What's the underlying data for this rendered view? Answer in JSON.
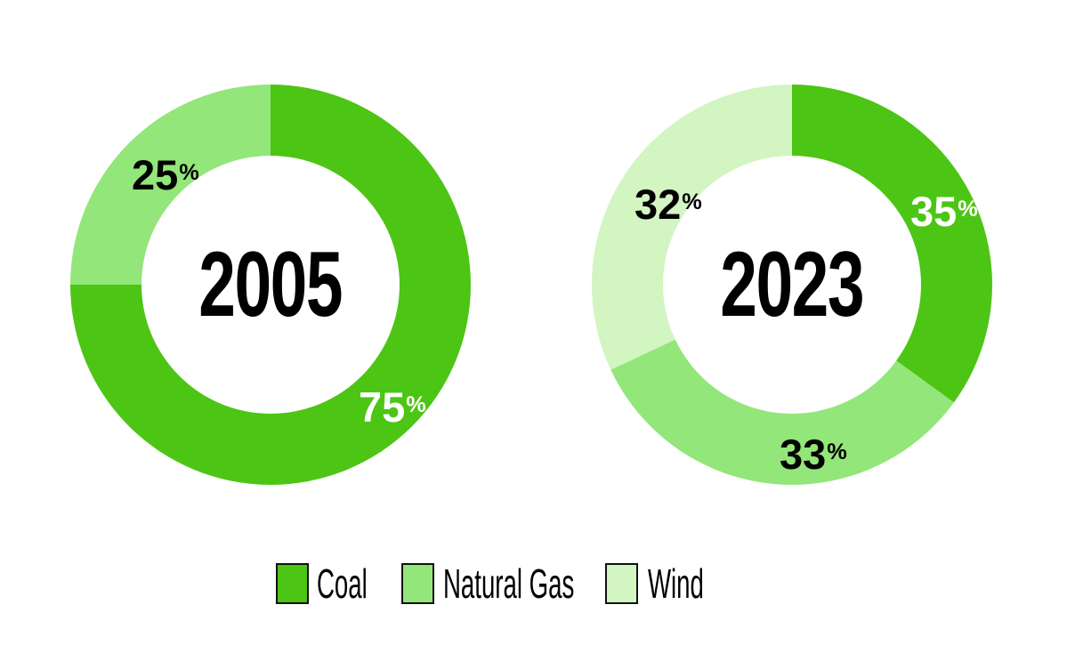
{
  "symbols": {
    "percent": "%"
  },
  "chart_data": [
    {
      "type": "pie",
      "subtype": "donut",
      "center_label": "2005",
      "start_angle_deg": 0,
      "direction": "clockwise",
      "slices": [
        {
          "label": "Coal",
          "value": 75,
          "color": "#4CC514",
          "value_label_color": "#FFFFFF"
        },
        {
          "label": "Natural Gas",
          "value": 25,
          "color": "#93E679",
          "value_label_color": "#000000"
        }
      ]
    },
    {
      "type": "pie",
      "subtype": "donut",
      "center_label": "2023",
      "start_angle_deg": 0,
      "direction": "clockwise",
      "slices": [
        {
          "label": "Coal",
          "value": 35,
          "color": "#4CC514",
          "value_label_color": "#FFFFFF"
        },
        {
          "label": "Natural Gas",
          "value": 33,
          "color": "#93E679",
          "value_label_color": "#000000"
        },
        {
          "label": "Wind",
          "value": 32,
          "color": "#D2F5C2",
          "value_label_color": "#000000"
        }
      ]
    }
  ],
  "legend": {
    "position": "bottom",
    "items": [
      {
        "label": "Coal",
        "color": "#4CC514"
      },
      {
        "label": "Natural Gas",
        "color": "#93E679"
      },
      {
        "label": "Wind",
        "color": "#D2F5C2"
      }
    ]
  }
}
